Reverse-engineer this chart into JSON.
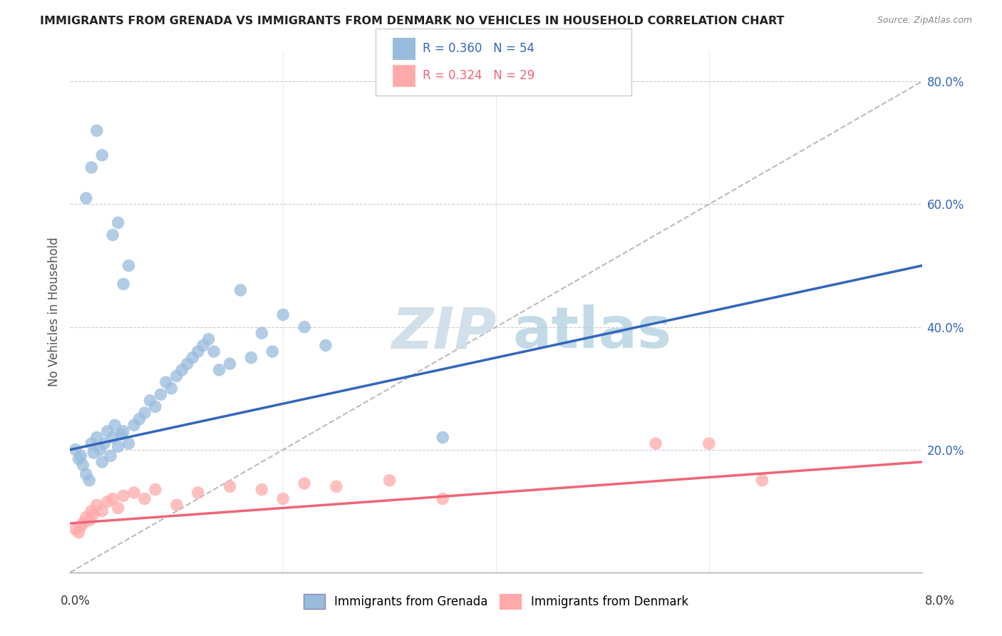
{
  "title": "IMMIGRANTS FROM GRENADA VS IMMIGRANTS FROM DENMARK NO VEHICLES IN HOUSEHOLD CORRELATION CHART",
  "source": "Source: ZipAtlas.com",
  "ylabel": "No Vehicles in Household",
  "grenada_R": 0.36,
  "grenada_N": 54,
  "denmark_R": 0.324,
  "denmark_N": 29,
  "grenada_color": "#99BBDD",
  "denmark_color": "#FFAAAA",
  "grenada_line_color": "#3366BB",
  "denmark_line_color": "#EE6677",
  "reference_line_color": "#BBBBBB",
  "xlim": [
    0.0,
    8.0
  ],
  "ylim": [
    0.0,
    85.0
  ],
  "yticks": [
    20.0,
    40.0,
    60.0,
    80.0
  ],
  "ytick_labels": [
    "20.0%",
    "40.0%",
    "60.0%",
    "80.0%"
  ],
  "grenada_line_x0": 0.0,
  "grenada_line_y0": 20.0,
  "grenada_line_x1": 8.0,
  "grenada_line_y1": 50.0,
  "denmark_line_x0": 0.0,
  "denmark_line_y0": 8.0,
  "denmark_line_x1": 8.0,
  "denmark_line_y1": 18.0,
  "ref_line_x0": 0.0,
  "ref_line_y0": 0.0,
  "ref_line_x1": 8.0,
  "ref_line_y1": 80.0,
  "grenada_x": [
    0.05,
    0.08,
    0.1,
    0.12,
    0.15,
    0.18,
    0.2,
    0.22,
    0.25,
    0.28,
    0.3,
    0.32,
    0.35,
    0.38,
    0.4,
    0.42,
    0.45,
    0.48,
    0.5,
    0.55,
    0.6,
    0.65,
    0.7,
    0.75,
    0.8,
    0.85,
    0.9,
    0.95,
    1.0,
    1.05,
    1.1,
    1.15,
    1.2,
    1.25,
    1.3,
    1.35,
    1.4,
    1.5,
    1.6,
    1.7,
    1.8,
    1.9,
    2.0,
    2.2,
    2.4,
    0.15,
    0.2,
    0.25,
    0.3,
    3.5,
    0.4,
    0.45,
    0.5,
    0.55
  ],
  "grenada_y": [
    20.0,
    18.5,
    19.0,
    17.5,
    16.0,
    15.0,
    21.0,
    19.5,
    22.0,
    20.0,
    18.0,
    21.0,
    23.0,
    19.0,
    22.0,
    24.0,
    20.5,
    22.5,
    23.0,
    21.0,
    24.0,
    25.0,
    26.0,
    28.0,
    27.0,
    29.0,
    31.0,
    30.0,
    32.0,
    33.0,
    34.0,
    35.0,
    36.0,
    37.0,
    38.0,
    36.0,
    33.0,
    34.0,
    46.0,
    35.0,
    39.0,
    36.0,
    42.0,
    40.0,
    37.0,
    61.0,
    66.0,
    72.0,
    68.0,
    22.0,
    55.0,
    57.0,
    47.0,
    50.0
  ],
  "denmark_x": [
    0.05,
    0.08,
    0.1,
    0.12,
    0.15,
    0.18,
    0.2,
    0.22,
    0.25,
    0.3,
    0.35,
    0.4,
    0.45,
    0.5,
    0.6,
    0.7,
    0.8,
    1.0,
    1.2,
    1.5,
    2.0,
    2.5,
    3.0,
    3.5,
    5.5,
    6.0,
    6.5,
    1.8,
    2.2
  ],
  "denmark_y": [
    7.0,
    6.5,
    7.5,
    8.0,
    9.0,
    8.5,
    10.0,
    9.5,
    11.0,
    10.0,
    11.5,
    12.0,
    10.5,
    12.5,
    13.0,
    12.0,
    13.5,
    11.0,
    13.0,
    14.0,
    12.0,
    14.0,
    15.0,
    12.0,
    21.0,
    21.0,
    15.0,
    13.5,
    14.5
  ]
}
